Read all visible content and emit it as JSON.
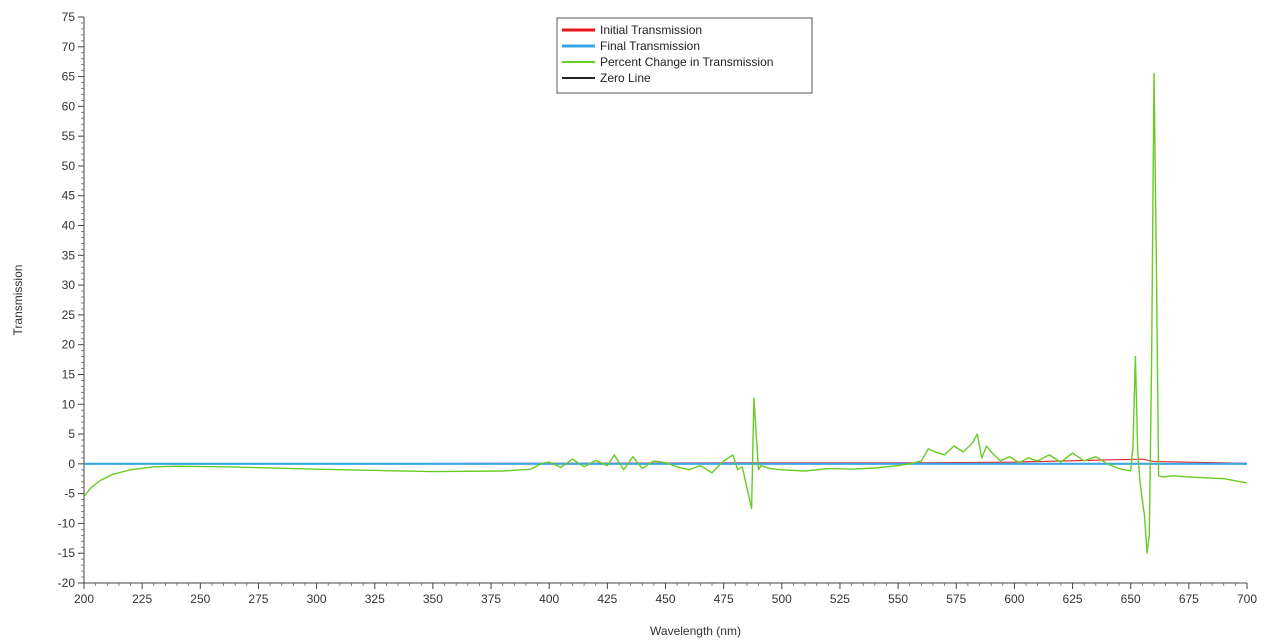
{
  "chart_data": {
    "type": "line",
    "title": "",
    "xlabel": "Wavelength (nm)",
    "ylabel": "Transmission",
    "xlim": [
      200,
      700
    ],
    "ylim": [
      -20,
      75
    ],
    "xticks": [
      200,
      225,
      250,
      275,
      300,
      325,
      350,
      375,
      400,
      425,
      450,
      475,
      500,
      525,
      550,
      575,
      600,
      625,
      650,
      675,
      700
    ],
    "yticks": [
      -20,
      -15,
      -10,
      -5,
      0,
      5,
      10,
      15,
      20,
      25,
      30,
      35,
      40,
      45,
      50,
      55,
      60,
      65,
      70,
      75
    ],
    "grid": false,
    "legend_position": "top-center",
    "series": [
      {
        "name": "Initial Transmission",
        "color": "#e8141b",
        "x": [
          200,
          300,
          400,
          500,
          560,
          600,
          655,
          660,
          700
        ],
        "y": [
          0,
          0,
          0.1,
          0.2,
          0.2,
          0.3,
          0.8,
          0.4,
          0.1
        ]
      },
      {
        "name": "Final Transmission",
        "color": "#3aa6e8",
        "x": [
          200,
          300,
          400,
          500,
          600,
          700
        ],
        "y": [
          0,
          0,
          0,
          0,
          0,
          0
        ]
      },
      {
        "name": "Percent Change in Transmission",
        "color": "#66cc22",
        "x": [
          200,
          203,
          207,
          212,
          220,
          230,
          240,
          260,
          300,
          350,
          380,
          392,
          397,
          400,
          405,
          410,
          415,
          420,
          425,
          428,
          432,
          436,
          440,
          445,
          450,
          455,
          460,
          465,
          470,
          475,
          479,
          481,
          483,
          485,
          487,
          488,
          489,
          490,
          491,
          495,
          500,
          510,
          520,
          530,
          540,
          550,
          555,
          560,
          563,
          566,
          570,
          574,
          578,
          582,
          584,
          586,
          588,
          590,
          594,
          598,
          602,
          606,
          610,
          615,
          620,
          625,
          630,
          635,
          640,
          645,
          650,
          651,
          652,
          653,
          654,
          655,
          656,
          657,
          658,
          659,
          660,
          661,
          662,
          664,
          668,
          675,
          690,
          700
        ],
        "y": [
          -5.5,
          -4,
          -2.8,
          -1.8,
          -1,
          -0.5,
          -0.4,
          -0.5,
          -0.9,
          -1.3,
          -1.2,
          -0.9,
          0.1,
          0.3,
          -0.6,
          0.8,
          -0.5,
          0.6,
          -0.3,
          1.5,
          -1,
          1.2,
          -0.8,
          0.5,
          0.2,
          -0.5,
          -1,
          -0.3,
          -1.5,
          0.5,
          1.5,
          -1,
          -0.5,
          -4,
          -7.5,
          11,
          5,
          -1,
          -0.3,
          -0.8,
          -1,
          -1.2,
          -0.8,
          -0.9,
          -0.7,
          -0.3,
          0,
          0.5,
          2.5,
          2,
          1.5,
          3,
          2,
          3.5,
          5,
          1,
          3,
          2,
          0.5,
          1.2,
          0.2,
          1,
          0.5,
          1.5,
          0.3,
          1.8,
          0.5,
          1.2,
          0,
          -0.8,
          -1.2,
          3,
          18,
          2,
          -3,
          -6,
          -9,
          -15,
          -12,
          17,
          65.5,
          35,
          -2,
          -2.2,
          -2,
          -2.2,
          -2.5,
          -3.2
        ]
      },
      {
        "name": "Zero Line",
        "color": "#222222",
        "x": [
          200,
          700
        ],
        "y": [
          0,
          0
        ]
      }
    ]
  }
}
